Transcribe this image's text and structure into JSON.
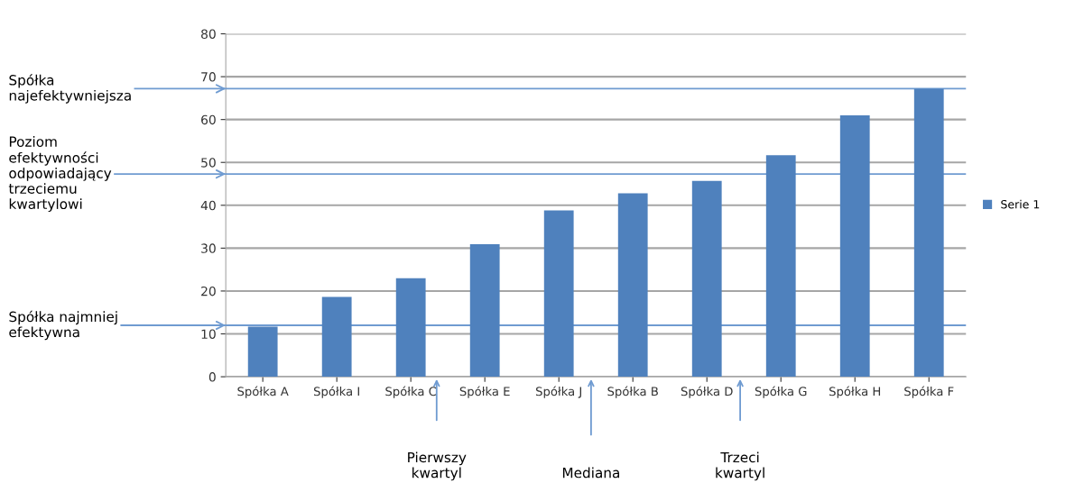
{
  "chart_data": {
    "type": "bar",
    "categories": [
      "Spółka A",
      "Spółka I",
      "Spółka C",
      "Spółka E",
      "Spółka J",
      "Spółka B",
      "Spółka D",
      "Spółka G",
      "Spółka H",
      "Spółka F"
    ],
    "series": [
      {
        "name": "Serie 1",
        "color": "#4f81bd",
        "values": [
          11.7,
          18.6,
          23.0,
          30.9,
          38.8,
          42.8,
          45.7,
          51.7,
          61.0,
          67.2
        ]
      }
    ],
    "ylim": [
      0,
      80
    ],
    "yticks": [
      0,
      10,
      20,
      30,
      40,
      50,
      60,
      70,
      80
    ],
    "grid": "y",
    "legend": "right",
    "ref_lines": [
      {
        "axis": "y",
        "value": 67.2,
        "label": "Spółka\nnajefektywniejsza",
        "color": "#6f9bd1"
      },
      {
        "axis": "y",
        "value": 47.3,
        "label": "Poziom\nefektywności\nodpowiadający\ntrzeciemu\nkwartylowi",
        "color": "#6f9bd1"
      },
      {
        "axis": "y",
        "value": 12,
        "label": "Spółka najmniej\nefektywna",
        "color": "#6f9bd1"
      }
    ],
    "annotations": [
      "Pierwszy\nkwartyl",
      "Mediana",
      "Trzeci\nkwartyl"
    ]
  }
}
